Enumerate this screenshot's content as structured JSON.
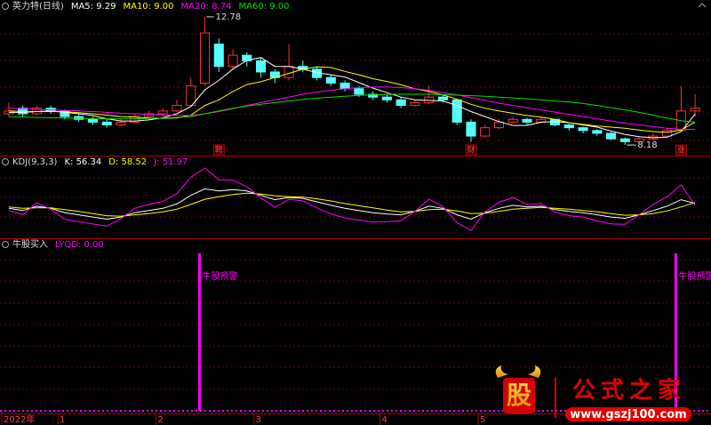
{
  "chart_data": [
    {
      "type": "candlestick",
      "title": "英力特(日线)",
      "open": [
        9.3,
        9.5,
        9.3,
        9.5,
        9.4,
        9.2,
        9.1,
        9.0,
        8.9,
        9.0,
        9.2,
        9.3,
        9.4,
        9.6,
        10.4,
        11.8,
        11.0,
        11.4,
        11.2,
        10.8,
        10.6,
        11.0,
        10.9,
        10.6,
        10.4,
        10.2,
        10.0,
        9.9,
        9.8,
        9.6,
        9.7,
        9.9,
        9.8,
        9.0,
        8.5,
        8.8,
        9.0,
        9.1,
        9.0,
        9.1,
        8.9,
        8.8,
        8.7,
        8.6,
        8.4,
        8.3,
        8.4,
        8.5,
        8.7,
        9.4
      ],
      "high": [
        9.7,
        9.6,
        9.6,
        9.6,
        9.45,
        9.3,
        9.2,
        9.1,
        9.1,
        9.3,
        9.4,
        9.5,
        9.8,
        10.6,
        12.78,
        12.0,
        11.6,
        11.5,
        11.3,
        10.9,
        11.8,
        11.2,
        11.0,
        10.7,
        10.5,
        10.3,
        10.1,
        10.0,
        9.9,
        9.8,
        10.3,
        10.0,
        9.85,
        9.1,
        8.9,
        9.1,
        9.2,
        9.15,
        9.2,
        9.1,
        8.95,
        8.85,
        8.75,
        8.65,
        8.45,
        8.5,
        8.6,
        8.8,
        10.3,
        10.0
      ],
      "low": [
        9.2,
        9.2,
        9.25,
        9.3,
        9.1,
        9.0,
        8.9,
        8.8,
        8.85,
        8.95,
        9.1,
        9.2,
        9.35,
        9.55,
        10.3,
        10.8,
        10.9,
        11.0,
        10.6,
        10.4,
        10.5,
        10.8,
        10.5,
        10.3,
        10.1,
        9.9,
        9.8,
        9.7,
        9.5,
        9.55,
        9.65,
        9.7,
        8.9,
        8.3,
        8.45,
        8.75,
        8.95,
        8.9,
        8.95,
        8.85,
        8.7,
        8.6,
        8.5,
        8.35,
        8.18,
        8.25,
        8.35,
        8.45,
        8.65,
        9.2
      ],
      "close": [
        9.4,
        9.3,
        9.5,
        9.4,
        9.2,
        9.1,
        9.0,
        8.9,
        9.0,
        9.2,
        9.3,
        9.4,
        9.6,
        10.3,
        12.2,
        11.0,
        11.4,
        11.2,
        10.8,
        10.6,
        11.0,
        10.9,
        10.6,
        10.4,
        10.2,
        10.0,
        9.9,
        9.8,
        9.6,
        9.7,
        9.9,
        9.8,
        9.0,
        8.5,
        8.8,
        9.0,
        9.1,
        9.0,
        9.1,
        8.9,
        8.8,
        8.7,
        8.6,
        8.4,
        8.3,
        8.4,
        8.5,
        8.7,
        9.4,
        9.5
      ],
      "up_color": "#ff3232",
      "down_color": "#54ffff",
      "series": [
        {
          "label": "MA5: 9.29",
          "color": "#ffffff",
          "values": [
            9.35,
            9.35,
            9.38,
            9.4,
            9.36,
            9.3,
            9.24,
            9.12,
            9.04,
            9.04,
            9.08,
            9.16,
            9.3,
            9.56,
            10.16,
            10.5,
            10.9,
            11.22,
            11.32,
            11.0,
            11.0,
            10.9,
            10.78,
            10.7,
            10.62,
            10.42,
            10.22,
            10.06,
            9.9,
            9.8,
            9.78,
            9.76,
            9.6,
            9.38,
            9.2,
            9.02,
            8.88,
            8.88,
            9.0,
            9.02,
            8.98,
            8.9,
            8.82,
            8.68,
            8.56,
            8.48,
            8.44,
            8.46,
            8.66,
            9.29
          ]
        },
        {
          "label": "MA10: 9.00",
          "color": "#ffff00",
          "values": [
            9.4,
            9.38,
            9.38,
            9.38,
            9.37,
            9.34,
            9.3,
            9.25,
            9.2,
            9.18,
            9.15,
            9.14,
            9.15,
            9.25,
            9.6,
            9.8,
            10.1,
            10.35,
            10.45,
            10.6,
            10.75,
            10.9,
            10.98,
            10.96,
            10.82,
            10.7,
            10.56,
            10.46,
            10.34,
            10.2,
            10.1,
            9.98,
            9.82,
            9.64,
            9.5,
            9.4,
            9.32,
            9.24,
            9.18,
            9.1,
            8.98,
            8.92,
            8.86,
            8.82,
            8.78,
            8.72,
            8.66,
            8.64,
            8.72,
            9.0
          ]
        },
        {
          "label": "MA20: 8.74",
          "color": "#ff00ff",
          "values": [
            9.5,
            9.48,
            9.46,
            9.44,
            9.42,
            9.4,
            9.38,
            9.35,
            9.32,
            9.3,
            9.28,
            9.26,
            9.24,
            9.24,
            9.3,
            9.38,
            9.48,
            9.6,
            9.7,
            9.8,
            9.9,
            10.0,
            10.08,
            10.14,
            10.2,
            10.24,
            10.26,
            10.26,
            10.24,
            10.2,
            10.14,
            10.06,
            9.98,
            9.88,
            9.78,
            9.68,
            9.6,
            9.52,
            9.44,
            9.36,
            9.28,
            9.2,
            9.12,
            9.04,
            8.96,
            8.9,
            8.84,
            8.78,
            8.74,
            8.74
          ]
        },
        {
          "label": "MA60: 9.00",
          "color": "#00e000",
          "values": [
            9.2,
            9.18,
            9.17,
            9.16,
            9.15,
            9.14,
            9.13,
            9.12,
            9.12,
            9.12,
            9.13,
            9.15,
            9.17,
            9.2,
            9.3,
            9.4,
            9.5,
            9.58,
            9.64,
            9.7,
            9.76,
            9.82,
            9.86,
            9.9,
            9.93,
            9.96,
            9.98,
            10.0,
            10.0,
            10.0,
            10.0,
            9.99,
            9.97,
            9.95,
            9.93,
            9.9,
            9.87,
            9.84,
            9.8,
            9.76,
            9.72,
            9.67,
            9.6,
            9.52,
            9.44,
            9.35,
            9.25,
            9.15,
            9.05,
            9.0
          ]
        }
      ],
      "ylim": [
        7.8,
        13.0
      ],
      "annotations": [
        {
          "index": 14,
          "text": "12.78",
          "at": "high"
        },
        {
          "index": 44,
          "text": "8.18",
          "at": "low"
        }
      ],
      "markers": [
        {
          "index": 15,
          "text": "聘"
        },
        {
          "index": 33,
          "text": "财"
        },
        {
          "index": 48,
          "text": "涨"
        }
      ]
    },
    {
      "type": "line",
      "title": "KDJ(9,3,3)",
      "series": [
        {
          "label": "K: 56.34",
          "color": "#ffffff",
          "values": [
            45,
            40,
            50,
            45,
            35,
            30,
            25,
            20,
            25,
            35,
            40,
            45,
            55,
            75,
            90,
            85,
            88,
            85,
            75,
            65,
            70,
            68,
            60,
            52,
            45,
            40,
            35,
            32,
            30,
            38,
            50,
            45,
            30,
            20,
            35,
            45,
            52,
            48,
            50,
            42,
            38,
            35,
            30,
            25,
            22,
            30,
            40,
            50,
            65,
            56.34
          ]
        },
        {
          "label": "D: 58.52",
          "color": "#ffff00",
          "values": [
            48,
            45,
            46,
            46,
            42,
            38,
            33,
            28,
            27,
            30,
            33,
            37,
            43,
            54,
            66,
            72,
            77,
            80,
            78,
            74,
            72,
            71,
            67,
            62,
            56,
            51,
            46,
            41,
            37,
            38,
            42,
            43,
            39,
            33,
            34,
            38,
            43,
            45,
            47,
            45,
            43,
            40,
            37,
            33,
            29,
            30,
            33,
            39,
            48,
            58.52
          ]
        },
        {
          "label": "J: 51.97",
          "color": "#ff00ff",
          "values": [
            40,
            30,
            58,
            43,
            20,
            14,
            9,
            4,
            21,
            45,
            54,
            61,
            79,
            117,
            138,
            111,
            110,
            95,
            69,
            47,
            66,
            62,
            46,
            32,
            23,
            18,
            13,
            14,
            16,
            38,
            66,
            49,
            12,
            -6,
            37,
            59,
            70,
            54,
            56,
            36,
            28,
            25,
            16,
            9,
            8,
            30,
            54,
            72,
            99,
            51.97
          ]
        }
      ],
      "ylim": [
        -20,
        140
      ]
    },
    {
      "type": "signal",
      "title": "牛股买入",
      "series": [
        {
          "label": "LYQD: 0.00",
          "color": "#ff00ff",
          "values": [
            0,
            0,
            0,
            0,
            0,
            0,
            0,
            0,
            0,
            0,
            0,
            0,
            0,
            0,
            1,
            0,
            0,
            0,
            0,
            0,
            0,
            0,
            0,
            0,
            0,
            0,
            0,
            0,
            0,
            0,
            0,
            0,
            0,
            0,
            0,
            0,
            0,
            0,
            0,
            0,
            0,
            0,
            0,
            0,
            0,
            0,
            0,
            0,
            1,
            0
          ]
        }
      ],
      "signal_text": "牛股预警",
      "ylim": [
        0,
        1
      ],
      "categories": [
        "2022年",
        null,
        null,
        null,
        "1",
        null,
        null,
        null,
        null,
        null,
        null,
        "2",
        null,
        null,
        null,
        null,
        null,
        null,
        "3",
        null,
        null,
        null,
        null,
        null,
        null,
        null,
        null,
        "4",
        null,
        null,
        null,
        null,
        null,
        null,
        "5",
        null,
        null,
        null,
        null,
        null,
        null,
        null,
        null,
        null,
        null,
        null,
        null,
        null,
        null,
        null
      ]
    }
  ],
  "watermark": {
    "logo": "股",
    "name": "公式之家",
    "url": "www.gszj100.com"
  }
}
